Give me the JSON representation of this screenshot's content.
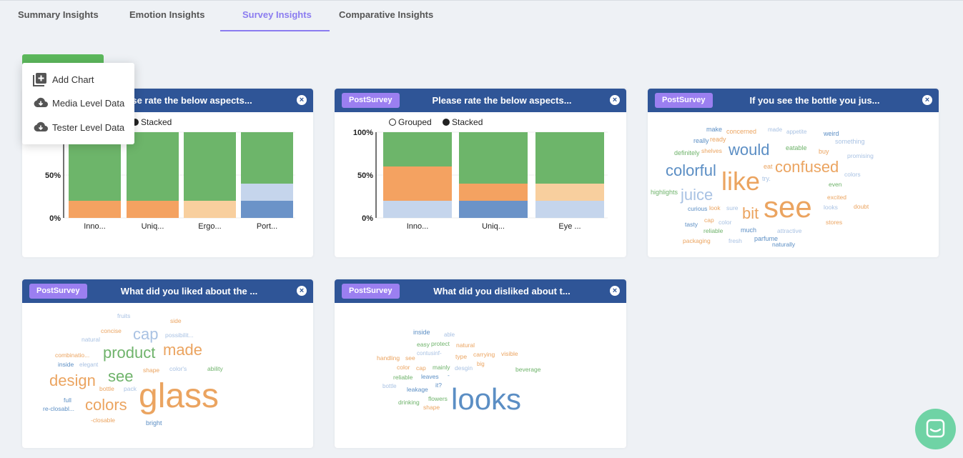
{
  "tabs": [
    {
      "label": "Summary Insights",
      "active": false
    },
    {
      "label": "Emotion Insights",
      "active": false
    },
    {
      "label": "Survey Insights",
      "active": true
    },
    {
      "label": "Comparative Insights",
      "active": false
    }
  ],
  "menu": {
    "items": [
      {
        "label": "Add Chart",
        "icon": "add-chart-icon"
      },
      {
        "label": "Media Level Data",
        "icon": "cloud-download-icon"
      },
      {
        "label": "Tester Level Data",
        "icon": "cloud-download-icon"
      }
    ]
  },
  "cards": [
    {
      "badge": "PostSurvey",
      "title": "Please rate the below aspects...",
      "title_visible": "lease rate the below aspects...",
      "type": "stacked-bar"
    },
    {
      "badge": "PostSurvey",
      "title": "Please rate the below aspects...",
      "type": "stacked-bar"
    },
    {
      "badge": "PostSurvey",
      "title": "If you see the bottle you jus...",
      "type": "wordcloud"
    },
    {
      "badge": "PostSurvey",
      "title": "What did you liked about the ...",
      "type": "wordcloud"
    },
    {
      "badge": "PostSurvey",
      "title": "What did you disliked about t...",
      "type": "wordcloud"
    }
  ],
  "legend": {
    "grouped": "Grouped",
    "stacked": "Stacked"
  },
  "colors": {
    "header": "#2f5597",
    "badge": "#9b7ff0",
    "tab_active": "#8b7cf0",
    "green": "#6db56a",
    "orange": "#f4a261",
    "light_orange": "#f8cf9e",
    "light_blue": "#c5d5ec",
    "blue": "#6b93c8"
  },
  "chart_data": [
    {
      "type": "bar",
      "stacked": true,
      "categories": [
        "Inno...",
        "Uniq...",
        "Ergo...",
        "Port..."
      ],
      "y_ticks": [
        "0%",
        "50%",
        "100%"
      ],
      "ylim": [
        0,
        100
      ],
      "segments": [
        [
          {
            "color": "orange",
            "value": 20
          },
          {
            "color": "green",
            "value": 80
          }
        ],
        [
          {
            "color": "orange",
            "value": 20
          },
          {
            "color": "green",
            "value": 80
          }
        ],
        [
          {
            "color": "light_orange",
            "value": 20
          },
          {
            "color": "green",
            "value": 80
          }
        ],
        [
          {
            "color": "blue",
            "value": 20
          },
          {
            "color": "light_blue",
            "value": 20
          },
          {
            "color": "green",
            "value": 60
          }
        ]
      ]
    },
    {
      "type": "bar",
      "stacked": true,
      "categories": [
        "Inno...",
        "Uniq...",
        "Eye ..."
      ],
      "y_ticks": [
        "0%",
        "50%",
        "100%"
      ],
      "ylim": [
        0,
        100
      ],
      "segments": [
        [
          {
            "color": "light_blue",
            "value": 20
          },
          {
            "color": "orange",
            "value": 40
          },
          {
            "color": "green",
            "value": 40
          }
        ],
        [
          {
            "color": "blue",
            "value": 20
          },
          {
            "color": "orange",
            "value": 20
          },
          {
            "color": "green",
            "value": 60
          }
        ],
        [
          {
            "color": "light_blue",
            "value": 20
          },
          {
            "color": "light_orange",
            "value": 20
          },
          {
            "color": "green",
            "value": 60
          }
        ]
      ]
    }
  ],
  "wordclouds": [
    [
      {
        "t": "make",
        "c": "blue"
      },
      {
        "t": "concerned",
        "c": "orange"
      },
      {
        "t": "made",
        "c": "lightblue"
      },
      {
        "t": "appetite",
        "c": "lightblue"
      },
      {
        "t": "weird",
        "c": "blue"
      },
      {
        "t": "really",
        "c": "blue"
      },
      {
        "t": "ready",
        "c": "orange"
      },
      {
        "t": "something",
        "c": "lightblue"
      },
      {
        "t": "definitely",
        "c": "green"
      },
      {
        "t": "shelves",
        "c": "orange"
      },
      {
        "t": "would",
        "c": "blue"
      },
      {
        "t": "eatable",
        "c": "green"
      },
      {
        "t": "buy",
        "c": "orange"
      },
      {
        "t": "promising",
        "c": "lightblue"
      },
      {
        "t": "colorful",
        "c": "blue"
      },
      {
        "t": "like",
        "c": "orange"
      },
      {
        "t": "eat",
        "c": "orange"
      },
      {
        "t": "confused",
        "c": "orange"
      },
      {
        "t": "colors",
        "c": "lightblue"
      },
      {
        "t": "try.",
        "c": "lightblue"
      },
      {
        "t": "even",
        "c": "green"
      },
      {
        "t": "highlights",
        "c": "green"
      },
      {
        "t": "juice",
        "c": "lightblue"
      },
      {
        "t": "excited",
        "c": "orange"
      },
      {
        "t": "curious",
        "c": "blue"
      },
      {
        "t": "look",
        "c": "orange"
      },
      {
        "t": "sure",
        "c": "lightblue"
      },
      {
        "t": "bit",
        "c": "orange"
      },
      {
        "t": "see",
        "c": "orange"
      },
      {
        "t": "looks",
        "c": "lightblue"
      },
      {
        "t": "doubt",
        "c": "orange"
      },
      {
        "t": "cap",
        "c": "orange"
      },
      {
        "t": "tasty",
        "c": "blue"
      },
      {
        "t": "color",
        "c": "lightblue"
      },
      {
        "t": "stores",
        "c": "orange"
      },
      {
        "t": "reliable",
        "c": "green"
      },
      {
        "t": "much",
        "c": "blue"
      },
      {
        "t": "attractive",
        "c": "lightblue"
      },
      {
        "t": "parfume",
        "c": "blue"
      },
      {
        "t": "packaging",
        "c": "orange"
      },
      {
        "t": "fresh",
        "c": "lightblue"
      },
      {
        "t": "naturally",
        "c": "blue"
      }
    ],
    [
      {
        "t": "fruits",
        "c": "lightblue"
      },
      {
        "t": "side",
        "c": "orange"
      },
      {
        "t": "concise",
        "c": "orange"
      },
      {
        "t": "cap",
        "c": "lightblue"
      },
      {
        "t": "possibilit...",
        "c": "lightblue"
      },
      {
        "t": "natural",
        "c": "lightblue"
      },
      {
        "t": "product",
        "c": "green"
      },
      {
        "t": "made",
        "c": "orange"
      },
      {
        "t": "combinatio...",
        "c": "orange"
      },
      {
        "t": "inside",
        "c": "blue"
      },
      {
        "t": "elegant",
        "c": "lightblue"
      },
      {
        "t": "shape",
        "c": "orange"
      },
      {
        "t": "color's",
        "c": "lightblue"
      },
      {
        "t": "ability",
        "c": "green"
      },
      {
        "t": "see",
        "c": "green"
      },
      {
        "t": "design",
        "c": "orange"
      },
      {
        "t": "bottle",
        "c": "orange"
      },
      {
        "t": "pack",
        "c": "lightblue"
      },
      {
        "t": "glass",
        "c": "orange"
      },
      {
        "t": "full",
        "c": "blue"
      },
      {
        "t": "colors",
        "c": "orange"
      },
      {
        "t": "re-closabl...",
        "c": "blue"
      },
      {
        "t": "-closable",
        "c": "orange"
      },
      {
        "t": "bright",
        "c": "blue"
      }
    ],
    [
      {
        "t": "inside",
        "c": "blue"
      },
      {
        "t": "able",
        "c": "lightblue"
      },
      {
        "t": "easy",
        "c": "green"
      },
      {
        "t": "protect",
        "c": "green"
      },
      {
        "t": "natural",
        "c": "orange"
      },
      {
        "t": "handling",
        "c": "orange"
      },
      {
        "t": "see",
        "c": "orange"
      },
      {
        "t": "contusinf-",
        "c": "lightblue"
      },
      {
        "t": "type",
        "c": "orange"
      },
      {
        "t": "carrying",
        "c": "orange"
      },
      {
        "t": "visible",
        "c": "orange"
      },
      {
        "t": "color",
        "c": "orange"
      },
      {
        "t": "cap",
        "c": "orange"
      },
      {
        "t": "mainly",
        "c": "green"
      },
      {
        "t": "desgin",
        "c": "lightblue"
      },
      {
        "t": "big",
        "c": "orange"
      },
      {
        "t": "beverage",
        "c": "green"
      },
      {
        "t": "reliable",
        "c": "green"
      },
      {
        "t": "leaves",
        "c": "blue"
      },
      {
        "t": "-",
        "c": "blue"
      },
      {
        "t": "bottle",
        "c": "lightblue"
      },
      {
        "t": "leakage",
        "c": "blue"
      },
      {
        "t": "it?",
        "c": "blue"
      },
      {
        "t": "drinking",
        "c": "green"
      },
      {
        "t": "flowers",
        "c": "green"
      },
      {
        "t": "shape",
        "c": "orange"
      },
      {
        "t": "looks",
        "c": "blue"
      }
    ]
  ]
}
